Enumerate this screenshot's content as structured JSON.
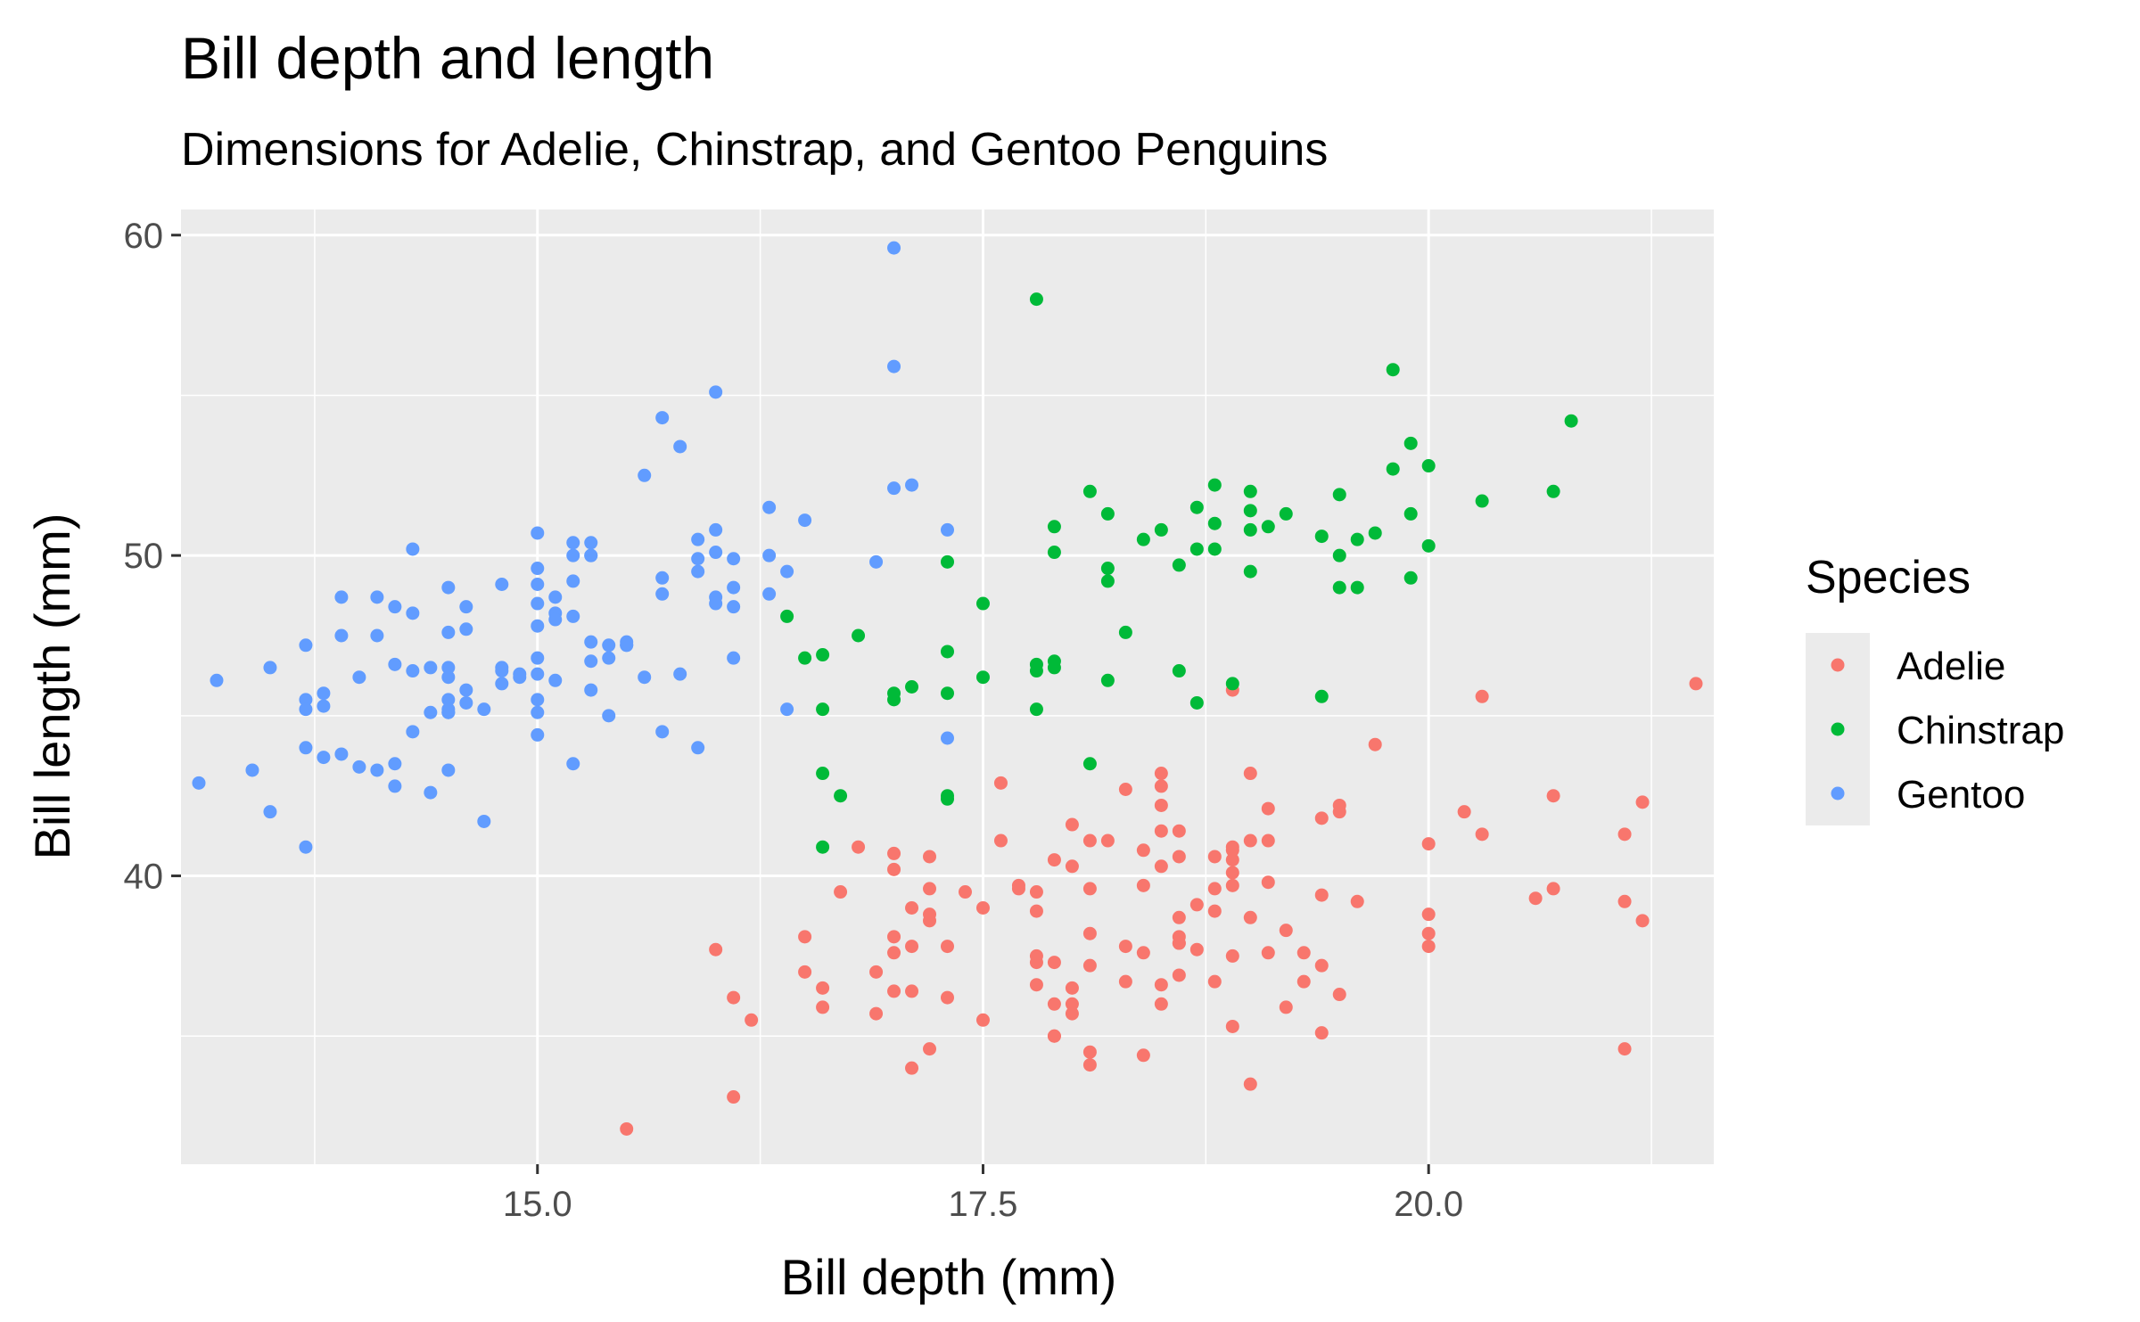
{
  "chart_data": {
    "type": "scatter",
    "title": "Bill depth and length",
    "subtitle": "Dimensions for Adelie, Chinstrap, and Gentoo Penguins",
    "xlabel": "Bill depth (mm)",
    "ylabel": "Bill length (mm)",
    "xlim": [
      13.0,
      21.6
    ],
    "ylim": [
      31.0,
      60.8
    ],
    "x_ticks": [
      15.0,
      17.5,
      20.0
    ],
    "x_tick_labels": [
      "15.0",
      "17.5",
      "20.0"
    ],
    "y_ticks": [
      40,
      50,
      60
    ],
    "y_tick_labels": [
      "40",
      "50",
      "60"
    ],
    "grid": true,
    "legend": {
      "title": "Species",
      "position": "right"
    },
    "series": [
      {
        "name": "Adelie",
        "color": "#F8766D",
        "points": [
          [
            18.7,
            39.1
          ],
          [
            17.4,
            39.5
          ],
          [
            18.0,
            40.3
          ],
          [
            19.3,
            36.7
          ],
          [
            20.6,
            39.3
          ],
          [
            17.8,
            38.9
          ],
          [
            19.6,
            39.2
          ],
          [
            18.1,
            34.1
          ],
          [
            20.2,
            42.0
          ],
          [
            17.1,
            37.8
          ],
          [
            17.3,
            37.8
          ],
          [
            17.6,
            41.1
          ],
          [
            21.2,
            38.6
          ],
          [
            21.1,
            34.6
          ],
          [
            17.8,
            36.6
          ],
          [
            19.0,
            38.7
          ],
          [
            20.7,
            42.5
          ],
          [
            18.4,
            34.4
          ],
          [
            21.5,
            46.0
          ],
          [
            18.3,
            37.8
          ],
          [
            18.7,
            37.7
          ],
          [
            19.2,
            35.9
          ],
          [
            18.1,
            38.2
          ],
          [
            17.2,
            38.8
          ],
          [
            18.9,
            35.3
          ],
          [
            18.6,
            40.6
          ],
          [
            17.9,
            40.5
          ],
          [
            18.6,
            37.9
          ],
          [
            18.9,
            40.5
          ],
          [
            16.7,
            39.5
          ],
          [
            18.1,
            37.2
          ],
          [
            17.8,
            39.5
          ],
          [
            18.9,
            40.9
          ],
          [
            17.0,
            36.4
          ],
          [
            21.1,
            39.2
          ],
          [
            20.0,
            38.8
          ],
          [
            18.5,
            42.2
          ],
          [
            19.3,
            37.6
          ],
          [
            19.1,
            39.8
          ],
          [
            18.0,
            36.5
          ],
          [
            18.4,
            40.8
          ],
          [
            18.5,
            36.0
          ],
          [
            19.7,
            44.1
          ],
          [
            16.9,
            37.0
          ],
          [
            18.8,
            39.6
          ],
          [
            19.0,
            41.1
          ],
          [
            18.9,
            37.5
          ],
          [
            17.9,
            36.0
          ],
          [
            21.2,
            42.3
          ],
          [
            17.7,
            39.6
          ],
          [
            18.9,
            40.1
          ],
          [
            17.9,
            35.0
          ],
          [
            19.5,
            42.0
          ],
          [
            18.1,
            34.5
          ],
          [
            18.6,
            41.4
          ],
          [
            17.5,
            39.0
          ],
          [
            18.8,
            40.6
          ],
          [
            16.6,
            36.5
          ],
          [
            19.1,
            37.6
          ],
          [
            16.9,
            35.7
          ],
          [
            21.1,
            41.3
          ],
          [
            17.0,
            37.6
          ],
          [
            18.2,
            41.1
          ],
          [
            17.1,
            36.4
          ],
          [
            18.0,
            41.6
          ],
          [
            16.2,
            35.5
          ],
          [
            19.1,
            41.1
          ],
          [
            16.6,
            35.9
          ],
          [
            19.4,
            41.8
          ],
          [
            19.0,
            33.5
          ],
          [
            18.4,
            39.7
          ],
          [
            17.2,
            39.6
          ],
          [
            18.9,
            45.8
          ],
          [
            17.5,
            35.5
          ],
          [
            18.5,
            42.8
          ],
          [
            16.8,
            40.9
          ],
          [
            19.4,
            37.2
          ],
          [
            16.1,
            36.2
          ],
          [
            19.1,
            42.1
          ],
          [
            17.2,
            34.6
          ],
          [
            17.6,
            42.9
          ],
          [
            18.8,
            36.7
          ],
          [
            19.4,
            35.1
          ],
          [
            17.8,
            37.3
          ],
          [
            20.3,
            41.3
          ],
          [
            19.5,
            36.3
          ],
          [
            18.6,
            36.9
          ],
          [
            19.2,
            38.3
          ],
          [
            18.8,
            38.9
          ],
          [
            18.0,
            35.7
          ],
          [
            18.1,
            41.1
          ],
          [
            17.1,
            34.0
          ],
          [
            18.1,
            39.6
          ],
          [
            17.3,
            36.2
          ],
          [
            18.9,
            40.8
          ],
          [
            18.6,
            38.1
          ],
          [
            18.5,
            40.3
          ],
          [
            16.1,
            33.1
          ],
          [
            18.5,
            43.2
          ],
          [
            17.9,
            35.0
          ],
          [
            20.0,
            41.0
          ],
          [
            16.0,
            37.7
          ],
          [
            20.0,
            37.8
          ],
          [
            18.6,
            37.9
          ],
          [
            18.9,
            39.7
          ],
          [
            17.2,
            38.6
          ],
          [
            20.0,
            38.2
          ],
          [
            17.0,
            38.1
          ],
          [
            19.0,
            43.2
          ],
          [
            16.5,
            38.1
          ],
          [
            20.3,
            45.6
          ],
          [
            17.7,
            39.7
          ],
          [
            19.5,
            42.2
          ],
          [
            20.7,
            39.6
          ],
          [
            18.3,
            42.7
          ],
          [
            15.5,
            32.1
          ],
          [
            18.5,
            41.4
          ],
          [
            16.5,
            37.0
          ],
          [
            19.4,
            39.4
          ],
          [
            18.4,
            37.6
          ],
          [
            18.5,
            36.6
          ],
          [
            18.6,
            38.7
          ],
          [
            17.9,
            37.3
          ],
          [
            17.0,
            40.2
          ],
          [
            18.0,
            36.0
          ],
          [
            17.0,
            40.7
          ],
          [
            17.1,
            39.0
          ],
          [
            18.3,
            36.7
          ],
          [
            17.8,
            37.5
          ],
          [
            17.2,
            40.6
          ]
        ]
      },
      {
        "name": "Chinstrap",
        "color": "#00BA38",
        "points": [
          [
            17.9,
            46.5
          ],
          [
            19.5,
            50.0
          ],
          [
            19.2,
            51.3
          ],
          [
            18.7,
            45.4
          ],
          [
            19.8,
            52.7
          ],
          [
            17.8,
            45.2
          ],
          [
            18.2,
            46.1
          ],
          [
            18.2,
            51.3
          ],
          [
            18.9,
            46.0
          ],
          [
            19.9,
            51.3
          ],
          [
            17.8,
            46.6
          ],
          [
            20.3,
            51.7
          ],
          [
            17.3,
            47.0
          ],
          [
            18.1,
            52.0
          ],
          [
            17.1,
            45.9
          ],
          [
            19.6,
            50.5
          ],
          [
            20.0,
            50.3
          ],
          [
            17.8,
            58.0
          ],
          [
            18.6,
            46.4
          ],
          [
            18.2,
            49.2
          ],
          [
            17.3,
            42.4
          ],
          [
            17.5,
            48.5
          ],
          [
            16.6,
            43.2
          ],
          [
            19.4,
            50.6
          ],
          [
            17.9,
            46.7
          ],
          [
            19.0,
            52.0
          ],
          [
            18.4,
            50.5
          ],
          [
            19.0,
            49.5
          ],
          [
            17.8,
            46.4
          ],
          [
            20.0,
            52.8
          ],
          [
            16.6,
            40.9
          ],
          [
            20.8,
            54.2
          ],
          [
            16.7,
            42.5
          ],
          [
            18.8,
            51.0
          ],
          [
            18.6,
            49.7
          ],
          [
            16.8,
            47.5
          ],
          [
            18.3,
            47.6
          ],
          [
            20.7,
            52.0
          ],
          [
            16.6,
            46.9
          ],
          [
            19.9,
            53.5
          ],
          [
            19.5,
            49.0
          ],
          [
            17.5,
            46.2
          ],
          [
            19.1,
            50.9
          ],
          [
            17.0,
            45.5
          ],
          [
            17.9,
            50.9
          ],
          [
            18.5,
            50.8
          ],
          [
            17.9,
            50.1
          ],
          [
            19.6,
            49.0
          ],
          [
            18.7,
            51.5
          ],
          [
            17.3,
            49.8
          ],
          [
            16.4,
            48.1
          ],
          [
            19.0,
            51.4
          ],
          [
            17.3,
            45.7
          ],
          [
            19.7,
            50.7
          ],
          [
            17.3,
            42.5
          ],
          [
            18.8,
            52.2
          ],
          [
            16.6,
            45.2
          ],
          [
            19.9,
            49.3
          ],
          [
            18.8,
            50.2
          ],
          [
            19.4,
            45.6
          ],
          [
            19.5,
            51.9
          ],
          [
            16.5,
            46.8
          ],
          [
            17.0,
            45.7
          ],
          [
            19.8,
            55.8
          ],
          [
            18.1,
            43.5
          ],
          [
            18.2,
            49.6
          ],
          [
            19.0,
            50.8
          ],
          [
            18.7,
            50.2
          ]
        ]
      },
      {
        "name": "Gentoo",
        "color": "#619CFF",
        "points": [
          [
            13.2,
            46.1
          ],
          [
            16.3,
            50.0
          ],
          [
            14.1,
            48.7
          ],
          [
            15.2,
            50.0
          ],
          [
            14.5,
            47.6
          ],
          [
            13.5,
            46.5
          ],
          [
            14.6,
            45.4
          ],
          [
            15.3,
            46.7
          ],
          [
            13.4,
            43.3
          ],
          [
            15.4,
            46.8
          ],
          [
            13.7,
            40.9
          ],
          [
            16.1,
            49.0
          ],
          [
            13.7,
            45.5
          ],
          [
            14.6,
            48.4
          ],
          [
            14.6,
            45.8
          ],
          [
            15.7,
            49.3
          ],
          [
            13.5,
            42.0
          ],
          [
            15.2,
            49.2
          ],
          [
            14.5,
            46.2
          ],
          [
            15.1,
            48.7
          ],
          [
            14.3,
            50.2
          ],
          [
            14.5,
            45.1
          ],
          [
            14.5,
            46.5
          ],
          [
            15.8,
            46.3
          ],
          [
            13.1,
            42.9
          ],
          [
            15.1,
            46.1
          ],
          [
            14.3,
            44.5
          ],
          [
            15.0,
            47.8
          ],
          [
            14.3,
            48.2
          ],
          [
            15.3,
            50.0
          ],
          [
            15.3,
            47.3
          ],
          [
            14.2,
            42.8
          ],
          [
            14.5,
            45.1
          ],
          [
            17.0,
            59.6
          ],
          [
            14.8,
            49.1
          ],
          [
            16.1,
            48.4
          ],
          [
            14.4,
            42.6
          ],
          [
            15.0,
            44.4
          ],
          [
            15.9,
            44.0
          ],
          [
            13.9,
            48.7
          ],
          [
            13.7,
            45.2
          ],
          [
            14.8,
            46.5
          ],
          [
            15.9,
            50.5
          ],
          [
            14.8,
            46.0
          ],
          [
            13.8,
            45.3
          ],
          [
            15.3,
            45.8
          ],
          [
            14.2,
            43.5
          ],
          [
            16.3,
            51.5
          ],
          [
            14.0,
            43.4
          ],
          [
            16.4,
            49.5
          ],
          [
            14.6,
            47.7
          ],
          [
            14.3,
            46.4
          ],
          [
            17.0,
            55.9
          ],
          [
            14.5,
            43.3
          ],
          [
            16.3,
            48.8
          ],
          [
            14.1,
            43.3
          ],
          [
            16.0,
            50.8
          ],
          [
            13.7,
            44.0
          ],
          [
            15.4,
            45.0
          ],
          [
            15.0,
            48.5
          ],
          [
            13.9,
            43.8
          ],
          [
            15.4,
            47.2
          ],
          [
            15.0,
            49.1
          ],
          [
            15.0,
            46.8
          ],
          [
            15.3,
            50.4
          ],
          [
            15.1,
            48.2
          ],
          [
            16.4,
            45.2
          ],
          [
            15.5,
            47.2
          ],
          [
            15.1,
            48.0
          ],
          [
            15.2,
            43.5
          ],
          [
            14.7,
            41.7
          ],
          [
            16.0,
            55.1
          ],
          [
            15.6,
            52.5
          ],
          [
            15.9,
            49.5
          ],
          [
            15.2,
            50.4
          ],
          [
            15.0,
            46.3
          ],
          [
            16.0,
            48.7
          ],
          [
            15.3,
            50.0
          ],
          [
            17.1,
            52.2
          ],
          [
            14.5,
            45.5
          ],
          [
            16.0,
            50.1
          ],
          [
            14.9,
            46.3
          ],
          [
            15.0,
            45.5
          ],
          [
            16.9,
            49.8
          ],
          [
            15.5,
            47.2
          ],
          [
            15.8,
            53.4
          ],
          [
            16.1,
            46.8
          ],
          [
            14.7,
            45.2
          ],
          [
            17.3,
            50.8
          ],
          [
            14.1,
            47.5
          ],
          [
            17.3,
            44.3
          ],
          [
            15.9,
            49.9
          ],
          [
            14.4,
            46.5
          ],
          [
            15.0,
            50.7
          ],
          [
            16.0,
            48.5
          ],
          [
            15.2,
            48.1
          ],
          [
            15.7,
            54.3
          ],
          [
            14.4,
            45.1
          ],
          [
            14.8,
            46.4
          ],
          [
            15.6,
            46.2
          ],
          [
            15.0,
            49.6
          ],
          [
            16.5,
            51.1
          ],
          [
            14.0,
            46.2
          ],
          [
            14.5,
            49.0
          ],
          [
            14.9,
            46.2
          ],
          [
            15.5,
            47.3
          ],
          [
            15.7,
            48.8
          ],
          [
            15.0,
            45.1
          ],
          [
            17.0,
            52.1
          ],
          [
            14.2,
            46.6
          ],
          [
            14.2,
            48.4
          ],
          [
            13.8,
            45.7
          ],
          [
            13.8,
            43.7
          ],
          [
            14.5,
            45.2
          ],
          [
            13.9,
            47.5
          ],
          [
            15.7,
            44.5
          ],
          [
            13.7,
            47.2
          ],
          [
            16.1,
            49.9
          ]
        ]
      }
    ]
  }
}
